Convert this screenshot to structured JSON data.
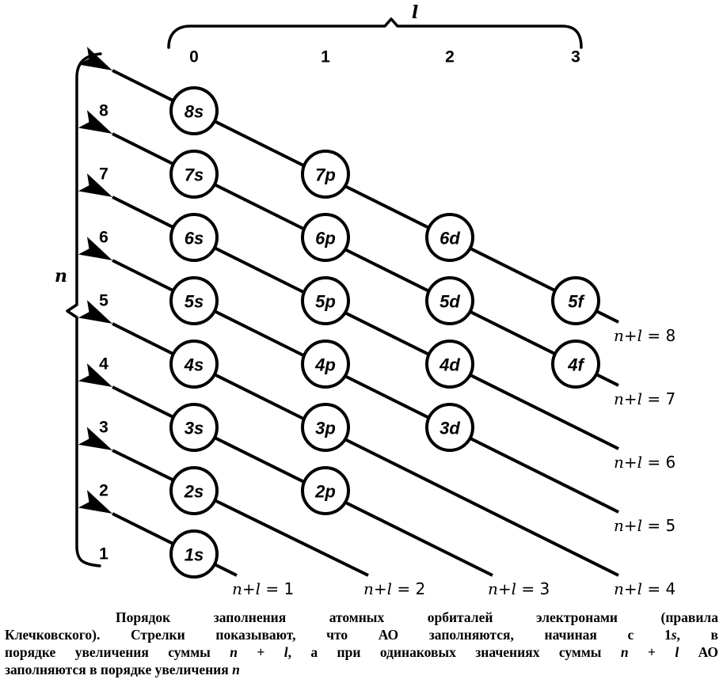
{
  "figure": {
    "l_axis": {
      "label": "l",
      "ticks": [
        "0",
        "1",
        "2",
        "3"
      ]
    },
    "n_axis": {
      "label": "n",
      "ticks": [
        "1",
        "2",
        "3",
        "4",
        "5",
        "6",
        "7",
        "8"
      ]
    },
    "orbitals": [
      {
        "name": "1s",
        "n": 1,
        "l": 0
      },
      {
        "name": "2s",
        "n": 2,
        "l": 0
      },
      {
        "name": "2p",
        "n": 2,
        "l": 1
      },
      {
        "name": "3s",
        "n": 3,
        "l": 0
      },
      {
        "name": "3p",
        "n": 3,
        "l": 1
      },
      {
        "name": "3d",
        "n": 3,
        "l": 2
      },
      {
        "name": "4s",
        "n": 4,
        "l": 0
      },
      {
        "name": "4p",
        "n": 4,
        "l": 1
      },
      {
        "name": "4d",
        "n": 4,
        "l": 2
      },
      {
        "name": "4f",
        "n": 4,
        "l": 3
      },
      {
        "name": "5s",
        "n": 5,
        "l": 0
      },
      {
        "name": "5p",
        "n": 5,
        "l": 1
      },
      {
        "name": "5d",
        "n": 5,
        "l": 2
      },
      {
        "name": "5f",
        "n": 5,
        "l": 3
      },
      {
        "name": "6s",
        "n": 6,
        "l": 0
      },
      {
        "name": "6p",
        "n": 6,
        "l": 1
      },
      {
        "name": "6d",
        "n": 6,
        "l": 2
      },
      {
        "name": "7s",
        "n": 7,
        "l": 0
      },
      {
        "name": "7p",
        "n": 7,
        "l": 1
      },
      {
        "name": "8s",
        "n": 8,
        "l": 0
      }
    ],
    "diagonals": [
      {
        "sum": 1,
        "label_italic": "n+l",
        "label_rest": " = 1"
      },
      {
        "sum": 2,
        "label_italic": "n+l",
        "label_rest": " = 2"
      },
      {
        "sum": 3,
        "label_italic": "n+l",
        "label_rest": " = 3"
      },
      {
        "sum": 4,
        "label_italic": "n+l",
        "label_rest": " = 4"
      },
      {
        "sum": 5,
        "label_italic": "n+l",
        "label_rest": " = 5"
      },
      {
        "sum": 6,
        "label_italic": "n+l",
        "label_rest": " = 6"
      },
      {
        "sum": 7,
        "label_italic": "n+l",
        "label_rest": " = 7"
      },
      {
        "sum": 8,
        "label_italic": "n+l",
        "label_rest": " = 8"
      }
    ]
  },
  "caption": {
    "lines": [
      {
        "indent": true,
        "justify": true,
        "segments": [
          {
            "t": "Порядок заполнения атомных орбиталей электронами (правила",
            "i": false
          }
        ]
      },
      {
        "justify": true,
        "segments": [
          {
            "t": "Клечковского). Стрелки показывают, что АО заполняются, начиная с 1",
            "i": false
          },
          {
            "t": "s",
            "i": true
          },
          {
            "t": ", в",
            "i": false
          }
        ]
      },
      {
        "justify": true,
        "segments": [
          {
            "t": "порядке увеличения суммы ",
            "i": false
          },
          {
            "t": "n",
            "i": true
          },
          {
            "t": " + ",
            "i": false
          },
          {
            "t": "l",
            "i": true
          },
          {
            "t": ", а при одинаковых значениях суммы ",
            "i": false
          },
          {
            "t": "n",
            "i": true
          },
          {
            "t": " + ",
            "i": false
          },
          {
            "t": "l",
            "i": true
          },
          {
            "t": " АО",
            "i": false
          }
        ]
      },
      {
        "justify": false,
        "segments": [
          {
            "t": "заполняются в порядке увеличения ",
            "i": false
          },
          {
            "t": "n",
            "i": true
          }
        ]
      }
    ]
  }
}
